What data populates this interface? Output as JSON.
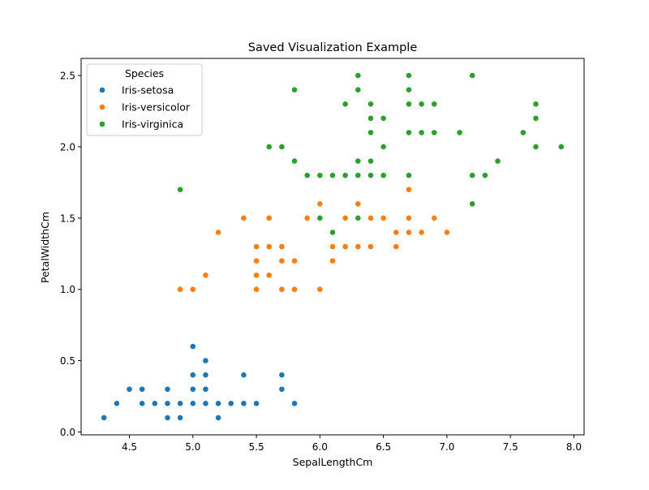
{
  "chart_data": {
    "type": "scatter",
    "title": "Saved Visualization Example",
    "xlabel": "SepalLengthCm",
    "ylabel": "PetalWidthCm",
    "xlim": [
      4.12,
      8.08
    ],
    "ylim": [
      -0.02,
      2.62
    ],
    "xticks": [
      4.5,
      5.0,
      5.5,
      6.0,
      6.5,
      7.0,
      7.5,
      8.0
    ],
    "xtick_labels": [
      "4.5",
      "5.0",
      "5.5",
      "6.0",
      "6.5",
      "7.0",
      "7.5",
      "8.0"
    ],
    "yticks": [
      0.0,
      0.5,
      1.0,
      1.5,
      2.0,
      2.5
    ],
    "ytick_labels": [
      "0.0",
      "0.5",
      "1.0",
      "1.5",
      "2.0",
      "2.5"
    ],
    "grid": false,
    "legend": {
      "title": "Species",
      "placement": "upper-left"
    },
    "series": [
      {
        "name": "Iris-setosa",
        "color": "#1f77b4",
        "points": [
          [
            4.3,
            0.1
          ],
          [
            4.4,
            0.2
          ],
          [
            4.5,
            0.3
          ],
          [
            4.6,
            0.2
          ],
          [
            4.6,
            0.3
          ],
          [
            4.7,
            0.2
          ],
          [
            4.8,
            0.1
          ],
          [
            4.8,
            0.2
          ],
          [
            4.8,
            0.3
          ],
          [
            4.9,
            0.1
          ],
          [
            4.9,
            0.2
          ],
          [
            5.0,
            0.2
          ],
          [
            5.0,
            0.3
          ],
          [
            5.0,
            0.4
          ],
          [
            5.0,
            0.6
          ],
          [
            5.1,
            0.2
          ],
          [
            5.1,
            0.3
          ],
          [
            5.1,
            0.4
          ],
          [
            5.1,
            0.5
          ],
          [
            5.2,
            0.1
          ],
          [
            5.2,
            0.2
          ],
          [
            5.3,
            0.2
          ],
          [
            5.4,
            0.2
          ],
          [
            5.4,
            0.4
          ],
          [
            5.5,
            0.2
          ],
          [
            5.7,
            0.3
          ],
          [
            5.7,
            0.4
          ],
          [
            5.8,
            0.2
          ]
        ]
      },
      {
        "name": "Iris-versicolor",
        "color": "#ff7f0e",
        "points": [
          [
            4.9,
            1.0
          ],
          [
            5.0,
            1.0
          ],
          [
            5.1,
            1.1
          ],
          [
            5.2,
            1.4
          ],
          [
            5.4,
            1.5
          ],
          [
            5.5,
            1.0
          ],
          [
            5.5,
            1.1
          ],
          [
            5.5,
            1.2
          ],
          [
            5.5,
            1.3
          ],
          [
            5.6,
            1.1
          ],
          [
            5.6,
            1.3
          ],
          [
            5.6,
            1.5
          ],
          [
            5.7,
            1.0
          ],
          [
            5.7,
            1.2
          ],
          [
            5.7,
            1.3
          ],
          [
            5.8,
            1.0
          ],
          [
            5.8,
            1.2
          ],
          [
            5.9,
            1.5
          ],
          [
            6.0,
            1.0
          ],
          [
            6.0,
            1.5
          ],
          [
            6.0,
            1.6
          ],
          [
            6.1,
            1.2
          ],
          [
            6.1,
            1.3
          ],
          [
            6.2,
            1.3
          ],
          [
            6.2,
            1.5
          ],
          [
            6.3,
            1.3
          ],
          [
            6.3,
            1.5
          ],
          [
            6.3,
            1.6
          ],
          [
            6.4,
            1.3
          ],
          [
            6.4,
            1.5
          ],
          [
            6.5,
            1.5
          ],
          [
            6.6,
            1.3
          ],
          [
            6.6,
            1.4
          ],
          [
            6.7,
            1.4
          ],
          [
            6.7,
            1.5
          ],
          [
            6.7,
            1.7
          ],
          [
            6.8,
            1.4
          ],
          [
            6.9,
            1.5
          ],
          [
            7.0,
            1.4
          ]
        ]
      },
      {
        "name": "Iris-virginica",
        "color": "#2ca02c",
        "points": [
          [
            4.9,
            1.7
          ],
          [
            5.6,
            2.0
          ],
          [
            5.7,
            2.0
          ],
          [
            5.8,
            1.9
          ],
          [
            5.8,
            2.4
          ],
          [
            5.9,
            1.8
          ],
          [
            6.0,
            1.5
          ],
          [
            6.0,
            1.8
          ],
          [
            6.1,
            1.4
          ],
          [
            6.1,
            1.8
          ],
          [
            6.2,
            1.8
          ],
          [
            6.2,
            2.3
          ],
          [
            6.3,
            1.5
          ],
          [
            6.3,
            1.8
          ],
          [
            6.3,
            1.9
          ],
          [
            6.3,
            2.4
          ],
          [
            6.3,
            2.5
          ],
          [
            6.4,
            1.8
          ],
          [
            6.4,
            1.9
          ],
          [
            6.4,
            2.1
          ],
          [
            6.4,
            2.2
          ],
          [
            6.4,
            2.3
          ],
          [
            6.5,
            1.8
          ],
          [
            6.5,
            2.0
          ],
          [
            6.5,
            2.2
          ],
          [
            6.7,
            1.8
          ],
          [
            6.7,
            2.1
          ],
          [
            6.7,
            2.3
          ],
          [
            6.7,
            2.4
          ],
          [
            6.7,
            2.5
          ],
          [
            6.8,
            2.1
          ],
          [
            6.8,
            2.3
          ],
          [
            6.9,
            2.1
          ],
          [
            6.9,
            2.3
          ],
          [
            7.1,
            2.1
          ],
          [
            7.2,
            1.6
          ],
          [
            7.2,
            1.8
          ],
          [
            7.2,
            2.5
          ],
          [
            7.3,
            1.8
          ],
          [
            7.4,
            1.9
          ],
          [
            7.6,
            2.1
          ],
          [
            7.7,
            2.0
          ],
          [
            7.7,
            2.2
          ],
          [
            7.7,
            2.3
          ],
          [
            7.9,
            2.0
          ]
        ]
      }
    ]
  }
}
